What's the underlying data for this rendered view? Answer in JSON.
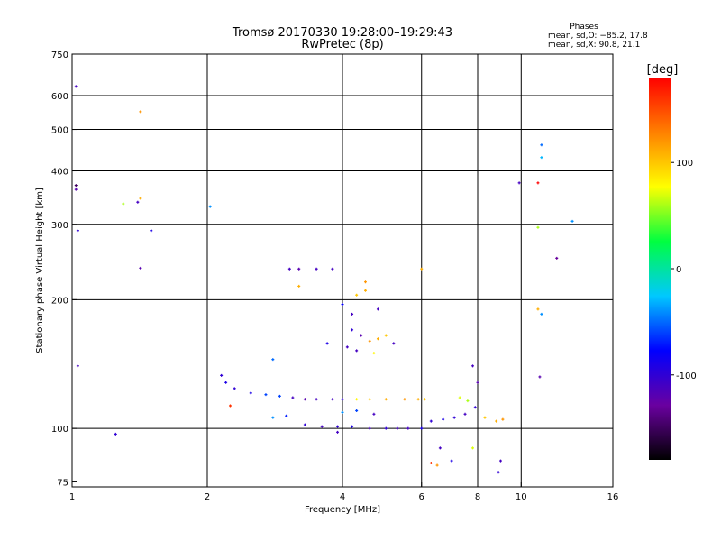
{
  "chart_data": {
    "type": "scatter",
    "title": "Tromsø 20170330 19:28:00–19:29:43",
    "subtitle": "RwPretec (8p)",
    "xlabel": "Frequency [MHz]",
    "ylabel": "Stationary phase Virtual Height [km]",
    "xscale": "log2",
    "yscale": "log",
    "xlim": [
      1,
      16
    ],
    "ylim": [
      73,
      750
    ],
    "x_ticks": [
      1,
      2,
      4,
      6,
      8,
      10,
      16
    ],
    "y_ticks": [
      75,
      100,
      200,
      300,
      400,
      500,
      600,
      750
    ],
    "vertical_gridlines": [
      2,
      4,
      6,
      8,
      10
    ],
    "horizontal_gridlines": [
      100,
      200,
      300,
      400,
      500,
      600
    ],
    "legend": {
      "title": "Phases",
      "line_o": "mean, sd,O: −85.2, 17.8",
      "line_x": "mean, sd,X:  90.8, 21.1"
    },
    "colorbar": {
      "label": "[deg]",
      "range": [
        -180,
        180
      ],
      "ticks": [
        100,
        0,
        -100
      ],
      "colormap": [
        "#000000",
        "#6a00a0",
        "#0000ff",
        "#00c8ff",
        "#00ff40",
        "#ffff00",
        "#ff8000",
        "#ff0000"
      ]
    },
    "points": [
      [
        1.02,
        630,
        -110
      ],
      [
        1.02,
        370,
        -150
      ],
      [
        1.02,
        362,
        -120
      ],
      [
        1.03,
        290,
        -100
      ],
      [
        1.03,
        140,
        -110
      ],
      [
        1.25,
        97,
        -100
      ],
      [
        1.3,
        335,
        60
      ],
      [
        1.4,
        338,
        -110
      ],
      [
        1.42,
        345,
        110
      ],
      [
        1.42,
        550,
        120
      ],
      [
        1.42,
        237,
        -120
      ],
      [
        1.5,
        290,
        -90
      ],
      [
        2.03,
        330,
        -40
      ],
      [
        2.25,
        113,
        160
      ],
      [
        2.8,
        145,
        -50
      ],
      [
        3.2,
        215,
        110
      ],
      [
        2.15,
        133,
        -100
      ],
      [
        2.2,
        128,
        -90
      ],
      [
        2.3,
        124,
        -100
      ],
      [
        2.5,
        121,
        -90
      ],
      [
        2.7,
        120,
        -60
      ],
      [
        2.9,
        119,
        -60
      ],
      [
        3.1,
        118,
        -110
      ],
      [
        3.3,
        117,
        -120
      ],
      [
        3.5,
        117,
        -110
      ],
      [
        3.8,
        117,
        -110
      ],
      [
        4.0,
        117,
        -100
      ],
      [
        4.3,
        117,
        80
      ],
      [
        4.6,
        117,
        100
      ],
      [
        5.0,
        117,
        110
      ],
      [
        5.5,
        117,
        120
      ],
      [
        5.9,
        117,
        110
      ],
      [
        6.1,
        117,
        100
      ],
      [
        3.05,
        236,
        -110
      ],
      [
        3.2,
        236,
        -120
      ],
      [
        3.5,
        236,
        -110
      ],
      [
        3.8,
        236,
        -110
      ],
      [
        2.8,
        106,
        -40
      ],
      [
        3.0,
        107,
        -70
      ],
      [
        3.3,
        102,
        -100
      ],
      [
        3.6,
        101,
        -110
      ],
      [
        3.9,
        101,
        -100
      ],
      [
        4.2,
        101,
        -90
      ],
      [
        4.6,
        100,
        -110
      ],
      [
        5.0,
        100,
        -100
      ],
      [
        5.3,
        100,
        -110
      ],
      [
        5.6,
        100,
        -110
      ],
      [
        6.0,
        100,
        -90
      ],
      [
        6.3,
        104,
        -100
      ],
      [
        6.7,
        105,
        -90
      ],
      [
        7.1,
        106,
        -100
      ],
      [
        7.5,
        108,
        -110
      ],
      [
        7.9,
        112,
        -100
      ],
      [
        8.3,
        106,
        100
      ],
      [
        8.8,
        104,
        110
      ],
      [
        9.1,
        105,
        120
      ],
      [
        7.3,
        118,
        70
      ],
      [
        7.6,
        116,
        60
      ],
      [
        8.0,
        128,
        -120
      ],
      [
        7.8,
        140,
        -110
      ],
      [
        4.0,
        195,
        -80
      ],
      [
        4.3,
        205,
        100
      ],
      [
        4.5,
        210,
        110
      ],
      [
        4.8,
        190,
        -110
      ],
      [
        4.2,
        185,
        -110
      ],
      [
        4.2,
        170,
        -100
      ],
      [
        4.4,
        165,
        -120
      ],
      [
        4.6,
        160,
        120
      ],
      [
        4.8,
        162,
        110
      ],
      [
        5.0,
        165,
        100
      ],
      [
        4.1,
        155,
        -110
      ],
      [
        4.3,
        152,
        -110
      ],
      [
        4.7,
        150,
        80
      ],
      [
        5.2,
        158,
        -110
      ],
      [
        3.7,
        158,
        -90
      ],
      [
        4.5,
        220,
        120
      ],
      [
        4.0,
        109,
        -40
      ],
      [
        4.3,
        110,
        -60
      ],
      [
        4.7,
        108,
        -110
      ],
      [
        3.9,
        98,
        -110
      ],
      [
        6.6,
        90,
        -110
      ],
      [
        6.3,
        83,
        160
      ],
      [
        6.5,
        82,
        120
      ],
      [
        7.0,
        84,
        -90
      ],
      [
        7.8,
        90,
        70
      ],
      [
        8.9,
        79,
        -100
      ],
      [
        9.0,
        84,
        -110
      ],
      [
        9.9,
        375,
        -110
      ],
      [
        10.9,
        375,
        180
      ],
      [
        11.1,
        460,
        -50
      ],
      [
        11.1,
        430,
        -30
      ],
      [
        10.9,
        295,
        60
      ],
      [
        11.1,
        185,
        -40
      ],
      [
        10.9,
        190,
        110
      ],
      [
        11.0,
        132,
        -120
      ],
      [
        12.0,
        250,
        -130
      ],
      [
        13.0,
        305,
        -40
      ],
      [
        6.0,
        236,
        110
      ]
    ]
  }
}
